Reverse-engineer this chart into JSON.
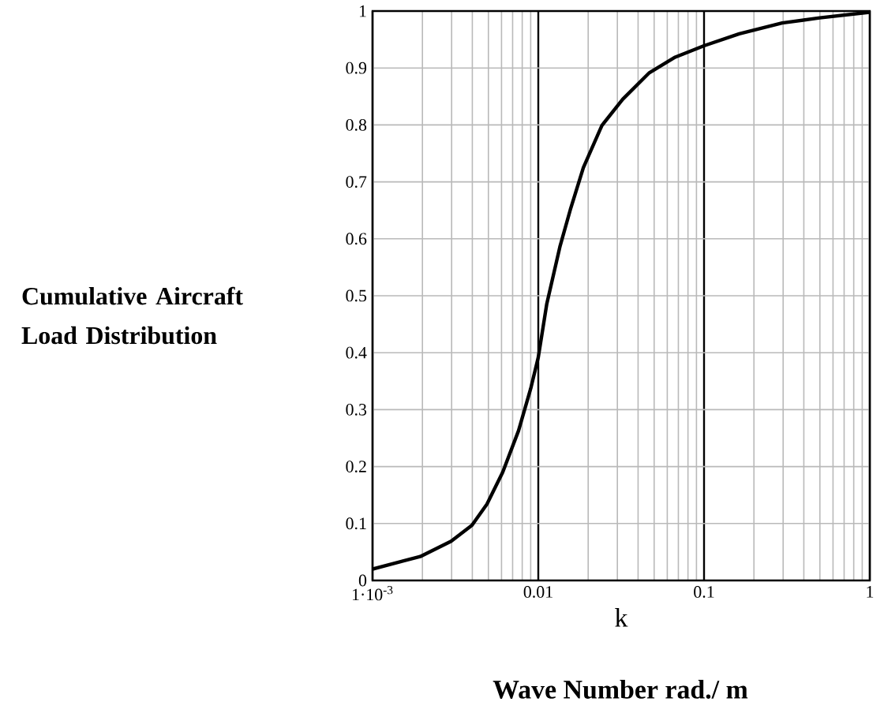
{
  "chart_data": {
    "type": "line",
    "ylabel": "Cumulative Aircraft Load Distribution",
    "xlabel": "k",
    "annotations": [
      "Wave Number rad./ m"
    ],
    "log": "x",
    "grid": true,
    "marker": "none",
    "line_style": "solid",
    "xlim": [
      0.001,
      1
    ],
    "ylim": [
      0,
      1
    ],
    "xticks": [
      {
        "value": 0.001,
        "label": "1·10$^{-3}$"
      },
      0.01,
      0.1,
      1
    ],
    "yticks": [
      0,
      0.1,
      0.2,
      0.3,
      0.4,
      0.5,
      0.6,
      0.7,
      0.8,
      0.9,
      1
    ],
    "x": [
      0.001,
      0.00194,
      0.00298,
      0.00398,
      0.0049,
      0.0061,
      0.0076,
      0.009,
      0.01,
      0.01124,
      0.0135,
      0.0156,
      0.0187,
      0.0242,
      0.0323,
      0.0465,
      0.067,
      0.1,
      0.163,
      0.296,
      0.499,
      1
    ],
    "series": [
      {
        "color": "#000000",
        "values": [
          0.02,
          0.042,
          0.069,
          0.097,
          0.134,
          0.19,
          0.263,
          0.337,
          0.392,
          0.485,
          0.586,
          0.651,
          0.725,
          0.799,
          0.845,
          0.891,
          0.919,
          0.939,
          0.96,
          0.979,
          0.988,
          0.998
        ]
      }
    ]
  }
}
